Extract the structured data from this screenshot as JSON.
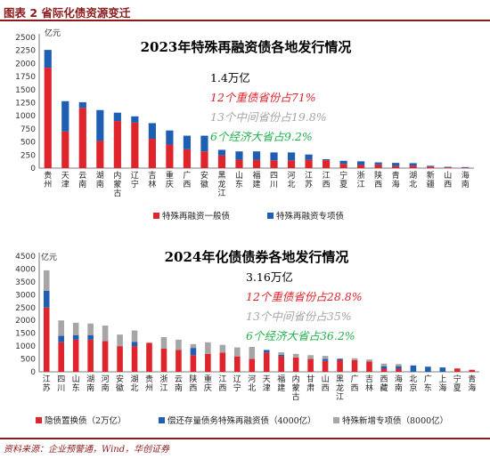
{
  "figure": {
    "label": "图表 2   省际化债资源变迁",
    "source": "资料来源：企业预警通，Wind，华创证券"
  },
  "chart_data": [
    {
      "type": "bar",
      "stacked": true,
      "title": "2023年特殊再融资债各地发行情况",
      "ylabel": "亿元",
      "ylim": [
        0,
        2500
      ],
      "yticks": [
        0,
        250,
        500,
        750,
        1000,
        1250,
        1500,
        1750,
        2000,
        2250,
        2500
      ],
      "categories": [
        "贵州",
        "天津",
        "云南",
        "湖南",
        "内蒙古",
        "辽宁",
        "吉林",
        "重庆",
        "广西",
        "安徽",
        "黑龙江",
        "山东",
        "福建",
        "四川",
        "河北",
        "江苏",
        "江西",
        "宁夏",
        "浙江",
        "陕西",
        "青海",
        "湖北",
        "新疆",
        "山西",
        "海南"
      ],
      "series": [
        {
          "name": "特殊再融资一般债",
          "color": "#e0242c",
          "values": [
            1920,
            700,
            1150,
            520,
            900,
            870,
            560,
            450,
            360,
            320,
            240,
            160,
            160,
            150,
            150,
            160,
            150,
            80,
            60,
            70,
            40,
            45,
            30,
            15,
            10
          ]
        },
        {
          "name": "特殊再融资专项债",
          "color": "#1f5fb3",
          "values": [
            340,
            580,
            110,
            590,
            160,
            120,
            300,
            270,
            260,
            300,
            110,
            160,
            160,
            150,
            150,
            100,
            20,
            60,
            70,
            40,
            60,
            50,
            15,
            10,
            10
          ]
        }
      ],
      "annotations": [
        {
          "text": "1.4万亿",
          "color": "#000000"
        },
        {
          "text": "12个重债省份占71%",
          "color": "#e0242c"
        },
        {
          "text": "13个中间省份占19.8%",
          "color": "#a6a6a6"
        },
        {
          "text": "6个经济大省占9.2%",
          "color": "#22b14c"
        }
      ]
    },
    {
      "type": "bar",
      "stacked": true,
      "title": "2024年化债债券各地发行情况",
      "ylabel": "亿元",
      "ylim": [
        0,
        4500
      ],
      "yticks": [
        0,
        500,
        1000,
        1500,
        2000,
        2500,
        3000,
        3500,
        4000,
        4500
      ],
      "categories": [
        "江苏",
        "四川",
        "山东",
        "湖南",
        "河南",
        "安徽",
        "湖北",
        "贵州",
        "浙江",
        "云南",
        "陕西",
        "重庆",
        "江西",
        "辽宁",
        "河北",
        "天津",
        "福建",
        "内蒙古",
        "甘肃",
        "山西",
        "黑龙江",
        "广西",
        "吉林",
        "西藏",
        "海南",
        "北京",
        "广东",
        "上海",
        "宁夏",
        "青海"
      ],
      "series": [
        {
          "name": "隐债置换债（2万亿）",
          "color": "#e0242c",
          "values": [
            2500,
            1150,
            1250,
            1250,
            1200,
            1000,
            1000,
            1130,
            900,
            850,
            650,
            700,
            750,
            600,
            500,
            750,
            600,
            560,
            500,
            420,
            450,
            450,
            400,
            120,
            120,
            0,
            0,
            0,
            130,
            80
          ]
        },
        {
          "name": "偿还存量债务特殊再融资债（4000亿）",
          "color": "#1f5fb3",
          "values": [
            650,
            250,
            180,
            180,
            0,
            0,
            160,
            0,
            0,
            0,
            280,
            0,
            0,
            0,
            0,
            100,
            60,
            0,
            0,
            80,
            60,
            0,
            0,
            100,
            100,
            250,
            200,
            170,
            0,
            0
          ]
        },
        {
          "name": "特殊新增专项债（8000亿）",
          "color": "#a6a6a6",
          "values": [
            800,
            600,
            480,
            450,
            600,
            450,
            450,
            0,
            450,
            400,
            150,
            450,
            300,
            350,
            470,
            0,
            100,
            140,
            150,
            120,
            0,
            80,
            80,
            100,
            80,
            0,
            0,
            0,
            0,
            0
          ]
        }
      ],
      "annotations": [
        {
          "text": "3.16万亿",
          "color": "#000000"
        },
        {
          "text": "12个重债省份占28.8%",
          "color": "#e0242c"
        },
        {
          "text": "13个中间省份占35%",
          "color": "#a6a6a6"
        },
        {
          "text": "6个经济大省占36.2%",
          "color": "#22b14c"
        }
      ]
    }
  ]
}
